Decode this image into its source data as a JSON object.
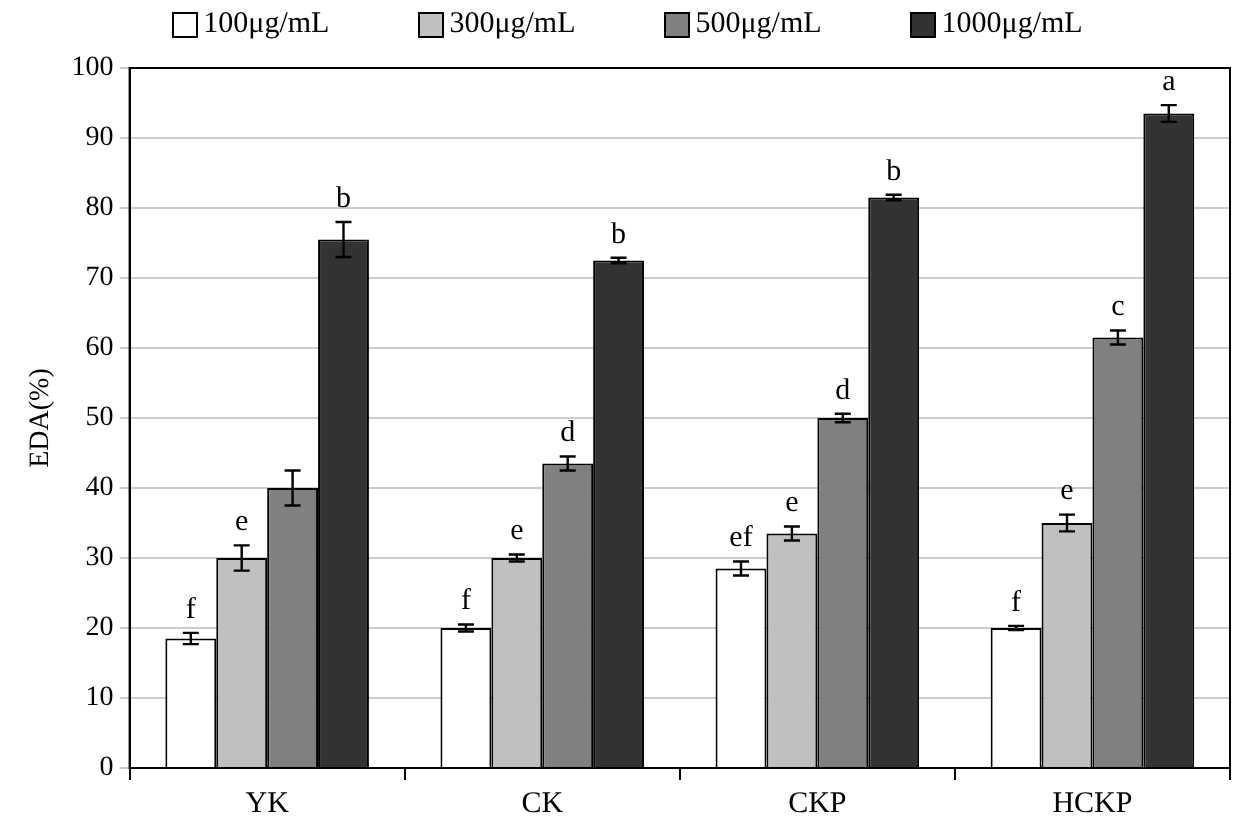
{
  "chart_data": {
    "type": "bar",
    "ylabel": "EDA(%)",
    "categories": [
      "YK",
      "CK",
      "CKP",
      "HCKP"
    ],
    "ylim": [
      0,
      100
    ],
    "yticks": [
      0,
      10,
      20,
      30,
      40,
      50,
      60,
      70,
      80,
      90,
      100
    ],
    "grid": "y",
    "legend": "top",
    "series": [
      {
        "name": "100μg/mL",
        "color": "#ffffff",
        "values": [
          18.5,
          20,
          28.5,
          20
        ],
        "errors": [
          0.8,
          0.5,
          1,
          0.3
        ],
        "value_labels": [
          "f",
          "f",
          "ef",
          "f"
        ]
      },
      {
        "name": "300μg/mL",
        "color": "#c0c0c0",
        "values": [
          30,
          30,
          33.5,
          35
        ],
        "errors": [
          1.8,
          0.5,
          1,
          1.2
        ],
        "value_labels": [
          "e",
          "e",
          "e",
          "e"
        ]
      },
      {
        "name": "500μg/mL",
        "color": "#808080",
        "values": [
          40,
          43.5,
          50,
          61.5
        ],
        "errors": [
          2.5,
          1,
          0.6,
          1
        ],
        "value_labels": [
          null,
          "d",
          "d",
          "c"
        ]
      },
      {
        "name": "1000μg/mL",
        "color": "#333333",
        "values": [
          75.5,
          72.5,
          81.5,
          93.5
        ],
        "errors": [
          2.5,
          0.4,
          0.4,
          1.2
        ],
        "value_labels": [
          "b",
          "b",
          "b",
          "a"
        ]
      }
    ]
  }
}
